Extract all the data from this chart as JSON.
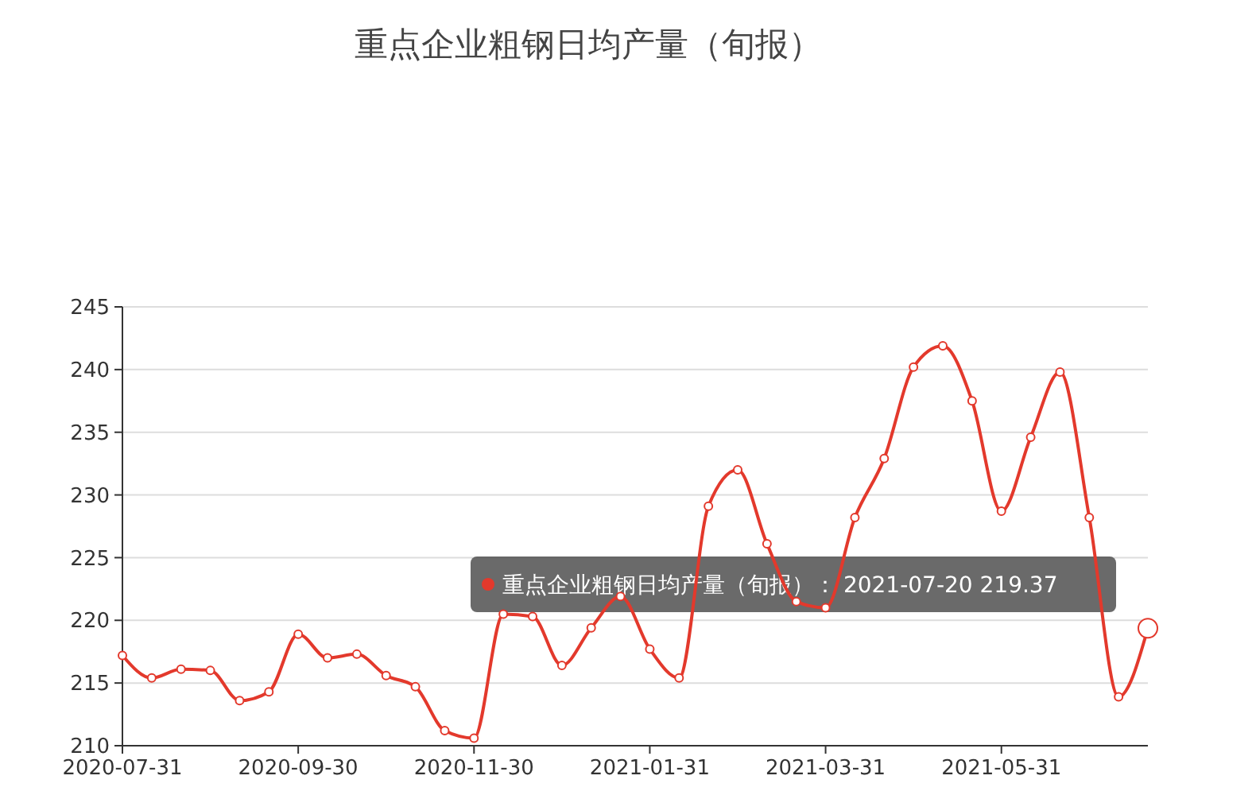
{
  "chart_data": {
    "type": "line",
    "title": "重点企业粗钢日均产量（旬报）",
    "categories": [
      "2020-07-31",
      null,
      null,
      null,
      null,
      null,
      "2020-09-30",
      null,
      null,
      null,
      null,
      null,
      "2020-11-30",
      null,
      null,
      null,
      null,
      null,
      "2021-01-31",
      null,
      null,
      null,
      null,
      null,
      "2021-03-31",
      null,
      null,
      null,
      null,
      null,
      "2021-05-31",
      null,
      null,
      null,
      null,
      null
    ],
    "series": [
      {
        "color": "#e3392c",
        "values": [
          217.2,
          215.4,
          216.1,
          216.0,
          213.6,
          214.3,
          218.9,
          217.0,
          217.3,
          215.6,
          214.7,
          211.2,
          210.6,
          220.5,
          220.3,
          216.4,
          219.4,
          221.9,
          217.7,
          215.4,
          229.1,
          232.0,
          226.1,
          221.5,
          221.0,
          228.2,
          232.9,
          240.2,
          241.9,
          237.5,
          228.7,
          234.6,
          239.8,
          228.2,
          213.9,
          219.37
        ]
      }
    ],
    "ylim": [
      210,
      245
    ],
    "yticks": [
      210,
      215,
      220,
      225,
      230,
      235,
      240,
      245
    ],
    "grid": "y",
    "marker": "circle",
    "line_style": "solid",
    "annotations": [
      "重点企业粗钢日均产量（旬报）： 2021-07-20 219.37"
    ]
  }
}
